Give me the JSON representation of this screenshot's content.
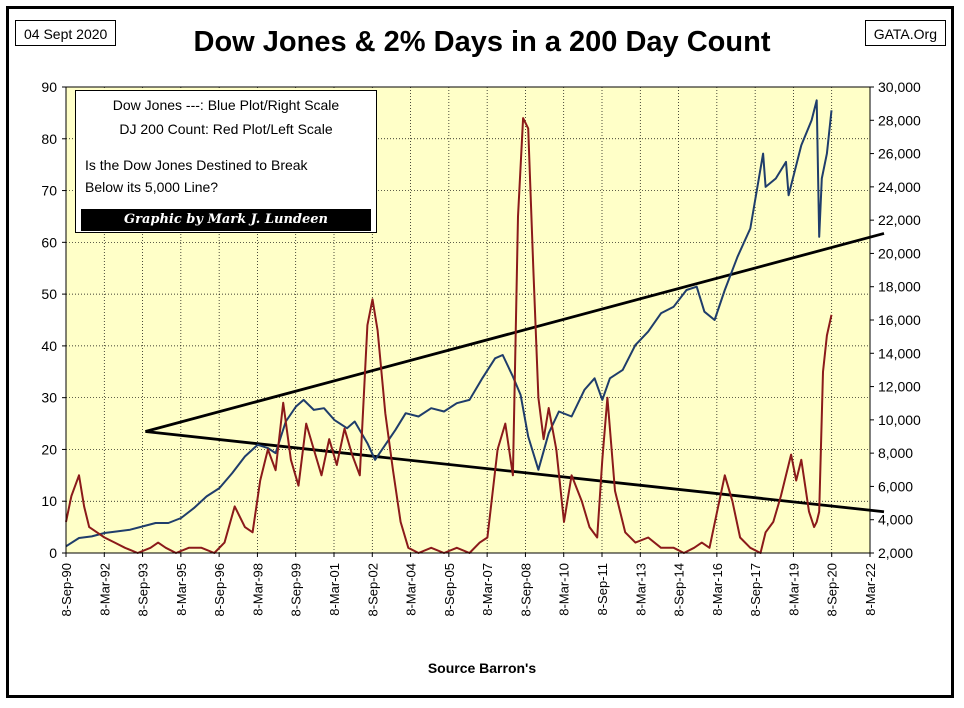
{
  "header": {
    "date": "04 Sept 2020",
    "source_site": "GATA.Org",
    "title": "Dow Jones & 2% Days in a 200 Day Count"
  },
  "legend": {
    "line1": "Dow Jones ---: Blue Plot/Right Scale",
    "line2": "DJ 200 Count: Red Plot/Left Scale",
    "line3": "Is the Dow Jones Destined to Break",
    "line4": "Below its 5,000 Line?",
    "credit": "Graphic by Mark J. Lundeen"
  },
  "footer": {
    "xlabel": "Source Barron's"
  },
  "colors": {
    "plot_background": "#ffffc8",
    "dow_line": "#1f3d6b",
    "count_line": "#8b1a1a",
    "trend_lines": "#000000",
    "grid": "#000000"
  },
  "chart_data": {
    "type": "line",
    "x_tick_labels": [
      "8-Sep-90",
      "8-Mar-92",
      "8-Sep-93",
      "8-Mar-95",
      "8-Sep-96",
      "8-Mar-98",
      "8-Sep-99",
      "8-Mar-01",
      "8-Sep-02",
      "8-Mar-04",
      "8-Sep-05",
      "8-Mar-07",
      "8-Sep-08",
      "8-Mar-10",
      "8-Sep-11",
      "8-Mar-13",
      "8-Sep-14",
      "8-Mar-16",
      "8-Sep-17",
      "8-Mar-19",
      "8-Sep-20",
      "8-Mar-22"
    ],
    "xlim": [
      1990.69,
      2022.19
    ],
    "y_left": {
      "ylim": [
        0,
        90
      ],
      "ticks": [
        "0",
        "10",
        "20",
        "30",
        "40",
        "50",
        "60",
        "70",
        "80",
        "90"
      ]
    },
    "y_right": {
      "ylim": [
        2000,
        30000
      ],
      "ticks": [
        "2,000",
        "4,000",
        "6,000",
        "8,000",
        "10,000",
        "12,000",
        "14,000",
        "16,000",
        "18,000",
        "20,000",
        "22,000",
        "24,000",
        "26,000",
        "28,000",
        "30,000"
      ]
    },
    "grid": true,
    "series": [
      {
        "name": "Dow Jones",
        "axis": "right",
        "x": [
          1990.69,
          1991.2,
          1991.7,
          1992.2,
          1992.7,
          1993.2,
          1993.7,
          1994.2,
          1994.7,
          1995.2,
          1995.7,
          1996.2,
          1996.7,
          1997.2,
          1997.7,
          1998.2,
          1998.6,
          1998.9,
          1999.3,
          1999.7,
          2000.0,
          2000.4,
          2000.8,
          2001.2,
          2001.7,
          2002.0,
          2002.5,
          2002.8,
          2003.2,
          2003.6,
          2004.0,
          2004.5,
          2005.0,
          2005.5,
          2006.0,
          2006.5,
          2007.0,
          2007.5,
          2007.8,
          2008.2,
          2008.5,
          2008.8,
          2009.2,
          2009.6,
          2010.0,
          2010.5,
          2011.0,
          2011.4,
          2011.7,
          2012.0,
          2012.5,
          2013.0,
          2013.5,
          2014.0,
          2014.5,
          2015.0,
          2015.4,
          2015.7,
          2016.1,
          2016.5,
          2017.0,
          2017.5,
          2018.0,
          2018.1,
          2018.5,
          2018.9,
          2019.0,
          2019.5,
          2019.9,
          2020.1,
          2020.2,
          2020.3,
          2020.5,
          2020.68
        ],
        "y": [
          2400,
          2900,
          3000,
          3200,
          3300,
          3400,
          3600,
          3800,
          3800,
          4100,
          4700,
          5400,
          5900,
          6800,
          7800,
          8500,
          8300,
          8000,
          9900,
          10800,
          11200,
          10600,
          10700,
          10000,
          9500,
          9900,
          8600,
          7600,
          8500,
          9400,
          10400,
          10200,
          10700,
          10500,
          11000,
          11200,
          12500,
          13700,
          13900,
          12600,
          11500,
          9000,
          7000,
          9200,
          10500,
          10200,
          11800,
          12500,
          11200,
          12500,
          13000,
          14500,
          15300,
          16400,
          16800,
          17800,
          18000,
          16500,
          16000,
          17800,
          19800,
          21500,
          26000,
          24000,
          24500,
          25500,
          23500,
          26500,
          28000,
          29200,
          21000,
          24500,
          26000,
          28600
        ]
      },
      {
        "name": "DJ 200 Count",
        "axis": "left",
        "x": [
          1990.69,
          1990.9,
          1991.2,
          1991.4,
          1991.6,
          1991.9,
          1992.2,
          1992.6,
          1993.0,
          1993.5,
          1994.0,
          1994.3,
          1994.6,
          1995.0,
          1995.5,
          1996.0,
          1996.5,
          1996.9,
          1997.3,
          1997.7,
          1998.0,
          1998.3,
          1998.6,
          1998.9,
          1999.2,
          1999.5,
          1999.8,
          2000.1,
          2000.4,
          2000.7,
          2001.0,
          2001.3,
          2001.6,
          2001.9,
          2002.2,
          2002.5,
          2002.7,
          2002.9,
          2003.2,
          2003.5,
          2003.8,
          2004.1,
          2004.5,
          2005.0,
          2005.5,
          2006.0,
          2006.5,
          2006.9,
          2007.2,
          2007.6,
          2007.9,
          2008.2,
          2008.4,
          2008.6,
          2008.8,
          2009.0,
          2009.2,
          2009.4,
          2009.6,
          2009.9,
          2010.2,
          2010.5,
          2010.9,
          2011.2,
          2011.5,
          2011.7,
          2011.9,
          2012.2,
          2012.6,
          2013.0,
          2013.5,
          2014.0,
          2014.5,
          2014.9,
          2015.3,
          2015.6,
          2015.9,
          2016.2,
          2016.5,
          2016.8,
          2017.1,
          2017.5,
          2017.9,
          2018.1,
          2018.4,
          2018.7,
          2018.9,
          2019.1,
          2019.3,
          2019.5,
          2019.8,
          2020.0,
          2020.1,
          2020.2,
          2020.35,
          2020.5,
          2020.68
        ],
        "y": [
          6,
          11,
          15,
          9,
          5,
          4,
          3,
          2,
          1,
          0,
          1,
          2,
          1,
          0,
          1,
          1,
          0,
          2,
          9,
          5,
          4,
          14,
          20,
          16,
          29,
          18,
          13,
          25,
          20,
          15,
          22,
          17,
          24,
          19,
          15,
          44,
          49,
          43,
          27,
          16,
          6,
          1,
          0,
          1,
          0,
          1,
          0,
          2,
          3,
          20,
          25,
          15,
          65,
          84,
          82,
          55,
          30,
          22,
          28,
          20,
          6,
          15,
          10,
          5,
          3,
          18,
          30,
          12,
          4,
          2,
          3,
          1,
          1,
          0,
          1,
          2,
          1,
          8,
          15,
          10,
          3,
          1,
          0,
          4,
          6,
          11,
          15,
          19,
          14,
          18,
          8,
          5,
          6,
          8,
          35,
          42,
          46
        ]
      }
    ],
    "trend_lines": [
      {
        "points": [
          [
            1993.8,
            9300
          ],
          [
            2022.19,
            20900
          ]
        ]
      },
      {
        "points": [
          [
            1993.8,
            9300
          ],
          [
            2022.19,
            4600
          ]
        ]
      }
    ]
  }
}
